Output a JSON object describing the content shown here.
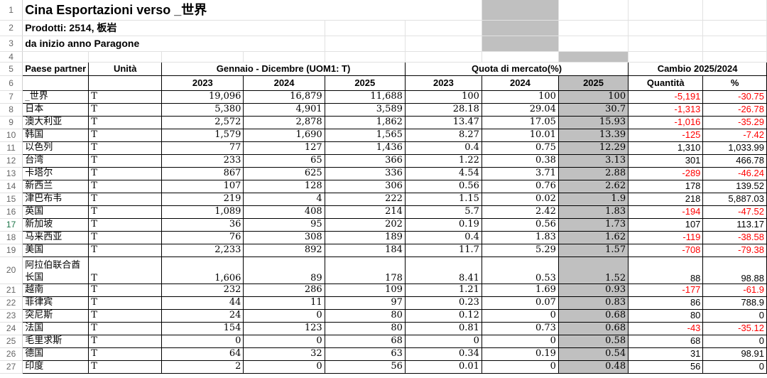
{
  "title": "Cina  Esportazioni verso _世界",
  "subtitle": "Prodotti: 2514, 板岩",
  "subtitle2": "da inizio anno Paragone",
  "headers": {
    "partner": "Paese partner",
    "unit": "Unità",
    "period_group": "Gennaio - Dicembre (UOM1: T)",
    "share_group": "Quota di mercato(%)",
    "change_group": "Cambio 2025/2024",
    "years": [
      "2023",
      "2024",
      "2025"
    ],
    "share_years": [
      "2023",
      "2024",
      "2025"
    ],
    "change_cols": [
      "Quantità",
      "%"
    ]
  },
  "row_numbers": [
    "1",
    "2",
    "3",
    "4",
    "5",
    "6",
    "7",
    "8",
    "9",
    "10",
    "11",
    "12",
    "13",
    "14",
    "15",
    "16",
    "17",
    "18",
    "19",
    "20",
    "21",
    "22",
    "23",
    "24",
    "25",
    "26",
    "27"
  ],
  "rows": [
    {
      "partner": "_世界",
      "unit": "T",
      "v2023": "19,096",
      "v2024": "16,879",
      "v2025": "11,688",
      "s2023": "100",
      "s2024": "100",
      "s2025": "100",
      "qty": "-5,191",
      "pct": "-30.75",
      "neg": true
    },
    {
      "partner": "日本",
      "unit": "T",
      "v2023": "5,380",
      "v2024": "4,901",
      "v2025": "3,589",
      "s2023": "28.18",
      "s2024": "29.04",
      "s2025": "30.7",
      "qty": "-1,313",
      "pct": "-26.78",
      "neg": true
    },
    {
      "partner": "澳大利亚",
      "unit": "T",
      "v2023": "2,572",
      "v2024": "2,878",
      "v2025": "1,862",
      "s2023": "13.47",
      "s2024": "17.05",
      "s2025": "15.93",
      "qty": "-1,016",
      "pct": "-35.29",
      "neg": true
    },
    {
      "partner": "韩国",
      "unit": "T",
      "v2023": "1,579",
      "v2024": "1,690",
      "v2025": "1,565",
      "s2023": "8.27",
      "s2024": "10.01",
      "s2025": "13.39",
      "qty": "-125",
      "pct": "-7.42",
      "neg": true
    },
    {
      "partner": "以色列",
      "unit": "T",
      "v2023": "77",
      "v2024": "127",
      "v2025": "1,436",
      "s2023": "0.4",
      "s2024": "0.75",
      "s2025": "12.29",
      "qty": "1,310",
      "pct": "1,033.99",
      "neg": false
    },
    {
      "partner": "台湾",
      "unit": "T",
      "v2023": "233",
      "v2024": "65",
      "v2025": "366",
      "s2023": "1.22",
      "s2024": "0.38",
      "s2025": "3.13",
      "qty": "301",
      "pct": "466.78",
      "neg": false
    },
    {
      "partner": "卡塔尔",
      "unit": "T",
      "v2023": "867",
      "v2024": "625",
      "v2025": "336",
      "s2023": "4.54",
      "s2024": "3.71",
      "s2025": "2.88",
      "qty": "-289",
      "pct": "-46.24",
      "neg": true
    },
    {
      "partner": "新西兰",
      "unit": "T",
      "v2023": "107",
      "v2024": "128",
      "v2025": "306",
      "s2023": "0.56",
      "s2024": "0.76",
      "s2025": "2.62",
      "qty": "178",
      "pct": "139.52",
      "neg": false
    },
    {
      "partner": "津巴布韦",
      "unit": "T",
      "v2023": "219",
      "v2024": "4",
      "v2025": "222",
      "s2023": "1.15",
      "s2024": "0.02",
      "s2025": "1.9",
      "qty": "218",
      "pct": "5,887.03",
      "neg": false
    },
    {
      "partner": "英国",
      "unit": "T",
      "v2023": "1,089",
      "v2024": "408",
      "v2025": "214",
      "s2023": "5.7",
      "s2024": "2.42",
      "s2025": "1.83",
      "qty": "-194",
      "pct": "-47.52",
      "neg": true
    },
    {
      "partner": "新加坡",
      "unit": "T",
      "v2023": "36",
      "v2024": "95",
      "v2025": "202",
      "s2023": "0.19",
      "s2024": "0.56",
      "s2025": "1.73",
      "qty": "107",
      "pct": "113.17",
      "neg": false
    },
    {
      "partner": "马来西亚",
      "unit": "T",
      "v2023": "76",
      "v2024": "308",
      "v2025": "189",
      "s2023": "0.4",
      "s2024": "1.83",
      "s2025": "1.62",
      "qty": "-119",
      "pct": "-38.58",
      "neg": true
    },
    {
      "partner": "美国",
      "unit": "T",
      "v2023": "2,233",
      "v2024": "892",
      "v2025": "184",
      "s2023": "11.7",
      "s2024": "5.29",
      "s2025": "1.57",
      "qty": "-708",
      "pct": "-79.38",
      "neg": true
    },
    {
      "partner": "阿拉伯联合酋长国",
      "unit": "T",
      "v2023": "1,606",
      "v2024": "89",
      "v2025": "178",
      "s2023": "8.41",
      "s2024": "0.53",
      "s2025": "1.52",
      "qty": "88",
      "pct": "98.88",
      "neg": false,
      "tall": true
    },
    {
      "partner": "越南",
      "unit": "T",
      "v2023": "232",
      "v2024": "286",
      "v2025": "109",
      "s2023": "1.21",
      "s2024": "1.69",
      "s2025": "0.93",
      "qty": "-177",
      "pct": "-61.9",
      "neg": true
    },
    {
      "partner": "菲律宾",
      "unit": "T",
      "v2023": "44",
      "v2024": "11",
      "v2025": "97",
      "s2023": "0.23",
      "s2024": "0.07",
      "s2025": "0.83",
      "qty": "86",
      "pct": "788.9",
      "neg": false
    },
    {
      "partner": "突尼斯",
      "unit": "T",
      "v2023": "24",
      "v2024": "0",
      "v2025": "80",
      "s2023": "0.12",
      "s2024": "0",
      "s2025": "0.68",
      "qty": "80",
      "pct": "0",
      "neg": false
    },
    {
      "partner": "法国",
      "unit": "T",
      "v2023": "154",
      "v2024": "123",
      "v2025": "80",
      "s2023": "0.81",
      "s2024": "0.73",
      "s2025": "0.68",
      "qty": "-43",
      "pct": "-35.12",
      "neg": true
    },
    {
      "partner": "毛里求斯",
      "unit": "T",
      "v2023": "0",
      "v2024": "0",
      "v2025": "68",
      "s2023": "0",
      "s2024": "0",
      "s2025": "0.58",
      "qty": "68",
      "pct": "0",
      "neg": false
    },
    {
      "partner": "德国",
      "unit": "T",
      "v2023": "64",
      "v2024": "32",
      "v2025": "63",
      "s2023": "0.34",
      "s2024": "0.19",
      "s2025": "0.54",
      "qty": "31",
      "pct": "98.91",
      "neg": false
    },
    {
      "partner": "印度",
      "unit": "T",
      "v2023": "2",
      "v2024": "0",
      "v2025": "56",
      "s2023": "0.01",
      "s2024": "0",
      "s2025": "0.48",
      "qty": "56",
      "pct": "0",
      "neg": false
    }
  ]
}
